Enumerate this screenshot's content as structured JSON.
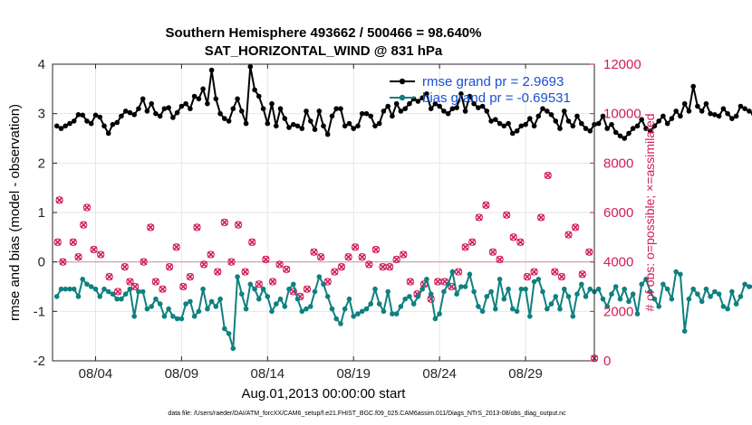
{
  "colors": {
    "rmse": "#000000",
    "bias": "#0f8080",
    "obs": "#d01c59",
    "legend_text": "#1a4fd6",
    "grid": "#e6e6e6",
    "zero_line": "#c8a0a0"
  },
  "chart_data": {
    "type": "line",
    "title_line1": "Southern Hemisphere 493662 / 500466 = 98.640%",
    "title_line2": "SAT_HORIZONTAL_WIND @ 831 hPa",
    "xlabel": "Aug.01,2013 00:00:00 start",
    "ylabel": "rmse and bias (model - observation)",
    "ylabel_right": "# of obs: o=possible; ×=assimilated",
    "footer": "data file: /Users/raeder/DAI/ATM_forcXX/CAM6_setup/f.e21.FHIST_BGC.f09_025.CAM6assim.011/Diags_NTrS_2013-08/obs_diag_output.nc",
    "xlim": [
      1,
      32.5
    ],
    "ylim": [
      -2,
      4
    ],
    "ylim_right": [
      0,
      12000
    ],
    "x_ticks": [
      3.5,
      8.5,
      13.5,
      18.5,
      23.5,
      28.5
    ],
    "x_tick_labels": [
      "08/04",
      "08/09",
      "08/14",
      "08/19",
      "08/24",
      "08/29"
    ],
    "y_ticks": [
      -2,
      -1,
      0,
      1,
      2,
      3,
      4
    ],
    "y_tick_labels": [
      "-2",
      "-1",
      "0",
      "1",
      "2",
      "3",
      "4"
    ],
    "y_ticks_right": [
      0,
      2000,
      4000,
      6000,
      8000,
      10000,
      12000
    ],
    "y_tick_labels_right": [
      "0",
      "2000",
      "4000",
      "6000",
      "8000",
      "10000",
      "12000"
    ],
    "legend": [
      {
        "name": "rmse",
        "label": "rmse grand pr = 2.9693"
      },
      {
        "name": "bias",
        "label": "bias grand pr = -0.69531"
      }
    ],
    "x_start": 1.25,
    "x_step": 0.25,
    "rmse": [
      2.75,
      2.7,
      2.75,
      2.8,
      2.85,
      2.98,
      2.97,
      2.85,
      2.8,
      2.97,
      2.93,
      2.75,
      2.6,
      2.78,
      2.82,
      2.95,
      3.05,
      3.02,
      2.98,
      3.1,
      3.3,
      3.05,
      3.2,
      3.0,
      2.95,
      3.1,
      3.12,
      2.92,
      3.02,
      3.15,
      3.2,
      3.1,
      3.35,
      3.3,
      3.5,
      3.2,
      3.88,
      3.3,
      3.0,
      2.9,
      2.85,
      3.1,
      3.3,
      3.05,
      2.8,
      3.95,
      3.48,
      3.35,
      3.1,
      2.8,
      3.2,
      2.75,
      3.1,
      2.9,
      2.72,
      2.78,
      2.75,
      2.7,
      3.05,
      2.85,
      2.68,
      3.05,
      2.75,
      2.58,
      2.95,
      3.1,
      3.1,
      2.75,
      2.8,
      2.7,
      2.75,
      3.0,
      3.0,
      2.95,
      2.75,
      2.8,
      3.05,
      3.15,
      2.95,
      3.2,
      3.05,
      3.1,
      3.2,
      3.3,
      3.25,
      3.32,
      3.4,
      3.1,
      3.2,
      3.15,
      3.05,
      3.0,
      3.1,
      3.12,
      3.4,
      3.05,
      3.35,
      3.2,
      3.12,
      3.15,
      3.05,
      2.85,
      2.88,
      2.8,
      2.75,
      2.8,
      2.6,
      2.65,
      2.75,
      2.78,
      2.9,
      2.75,
      2.95,
      3.1,
      3.05,
      2.98,
      2.85,
      2.7,
      3.05,
      2.85,
      2.75,
      2.95,
      2.8,
      2.7,
      2.65,
      2.78,
      2.8,
      2.95,
      2.7,
      2.78,
      2.62,
      2.55,
      2.5,
      2.6,
      2.7,
      2.75,
      2.88,
      2.7,
      2.65,
      2.75,
      2.85,
      2.95,
      2.8,
      2.9,
      3.05,
      2.95,
      3.2,
      3.05,
      3.55,
      3.15,
      3.05,
      3.2,
      3.0,
      2.98,
      2.95,
      3.1,
      3.0,
      2.9,
      2.95,
      3.15,
      3.1,
      3.05,
      3.0,
      3.08
    ],
    "bias": [
      -0.7,
      -0.55,
      -0.55,
      -0.55,
      -0.55,
      -0.7,
      -0.35,
      -0.45,
      -0.5,
      -0.55,
      -0.7,
      -0.55,
      -0.6,
      -0.65,
      -0.75,
      -0.75,
      -0.65,
      -0.55,
      -1.1,
      -0.6,
      -0.6,
      -0.95,
      -0.9,
      -0.75,
      -0.85,
      -1.1,
      -0.95,
      -1.1,
      -1.15,
      -1.15,
      -0.85,
      -0.8,
      -1.1,
      -1.0,
      -0.55,
      -0.95,
      -0.8,
      -0.9,
      -0.75,
      -1.35,
      -1.45,
      -1.75,
      -0.3,
      -0.65,
      -0.95,
      -0.45,
      -0.55,
      -0.75,
      -0.55,
      -0.7,
      -1.0,
      -0.85,
      -0.75,
      -0.9,
      -0.55,
      -0.45,
      -0.75,
      -1.0,
      -0.95,
      -0.9,
      -0.6,
      -0.3,
      -0.45,
      -0.7,
      -0.95,
      -1.15,
      -1.25,
      -0.95,
      -0.75,
      -1.1,
      -1.05,
      -1.0,
      -0.95,
      -0.85,
      -0.55,
      -0.85,
      -1.0,
      -0.6,
      -1.05,
      -1.05,
      -0.9,
      -0.75,
      -0.7,
      -0.85,
      -0.7,
      -0.55,
      -0.35,
      -0.65,
      -1.15,
      -1.05,
      -0.6,
      -0.45,
      -0.2,
      -0.65,
      -0.5,
      -0.5,
      -0.25,
      -0.6,
      -0.9,
      -1.0,
      -0.7,
      -0.6,
      -0.95,
      -0.35,
      -0.75,
      -0.55,
      -0.95,
      -1.0,
      -0.55,
      -0.55,
      -1.1,
      -0.4,
      -0.35,
      -0.6,
      -0.95,
      -0.85,
      -0.7,
      -0.95,
      -0.55,
      -0.7,
      -1.1,
      -0.65,
      -0.45,
      -0.7,
      -0.55,
      -0.6,
      -0.55,
      -0.75,
      -0.9,
      -0.65,
      -0.5,
      -0.75,
      -0.55,
      -0.8,
      -0.65,
      -1.05,
      -0.45,
      -0.35,
      -0.6,
      -0.75,
      -0.9,
      -0.45,
      -0.55,
      -0.75,
      -0.2,
      -0.25,
      -1.4,
      -0.75,
      -0.55,
      -0.65,
      -0.8,
      -0.55,
      -0.7,
      -0.6,
      -0.65,
      -0.9,
      -0.95,
      -0.6,
      -0.85,
      -0.7,
      -0.45,
      -0.5,
      -0.5
    ],
    "obs_x": [
      1.3,
      1.4,
      1.6,
      2.2,
      2.5,
      2.8,
      3.0,
      3.4,
      3.8,
      4.3,
      4.8,
      5.2,
      5.5,
      5.8,
      6.3,
      6.7,
      7.0,
      7.4,
      7.8,
      8.2,
      8.6,
      9.0,
      9.4,
      9.8,
      10.2,
      10.6,
      11.0,
      11.4,
      11.8,
      12.2,
      12.6,
      13.0,
      13.4,
      13.8,
      14.2,
      14.6,
      15.0,
      15.4,
      15.8,
      16.2,
      16.6,
      17.0,
      17.4,
      17.8,
      18.2,
      18.6,
      19.0,
      19.4,
      19.8,
      20.2,
      20.6,
      21.0,
      21.4,
      21.8,
      22.2,
      22.6,
      23.0,
      23.4,
      23.8,
      24.2,
      24.6,
      25.0,
      25.4,
      25.8,
      26.2,
      26.6,
      27.0,
      27.4,
      27.8,
      28.2,
      28.6,
      29.0,
      29.4,
      29.8,
      30.2,
      30.6,
      31.0,
      31.4,
      31.8,
      32.2,
      32.5
    ],
    "obs_count": [
      4800,
      6500,
      4000,
      4800,
      4200,
      5500,
      6200,
      4500,
      4300,
      3400,
      2800,
      3800,
      3200,
      3000,
      4000,
      5400,
      3200,
      2900,
      3800,
      4600,
      3000,
      3400,
      5400,
      3900,
      4300,
      3600,
      5600,
      4000,
      5500,
      3600,
      4800,
      3100,
      4100,
      3200,
      3900,
      3700,
      2800,
      2600,
      2900,
      4400,
      4200,
      3200,
      3600,
      3800,
      4200,
      4600,
      4200,
      3900,
      4500,
      3800,
      3800,
      4100,
      4300,
      3200,
      2700,
      3100,
      2500,
      3200,
      3200,
      3000,
      3600,
      4600,
      4800,
      5800,
      6300,
      4400,
      4100,
      5900,
      5000,
      4800,
      3400,
      3600,
      5800,
      7500,
      3600,
      3400,
      5100,
      5400,
      3500,
      4400,
      100
    ]
  }
}
